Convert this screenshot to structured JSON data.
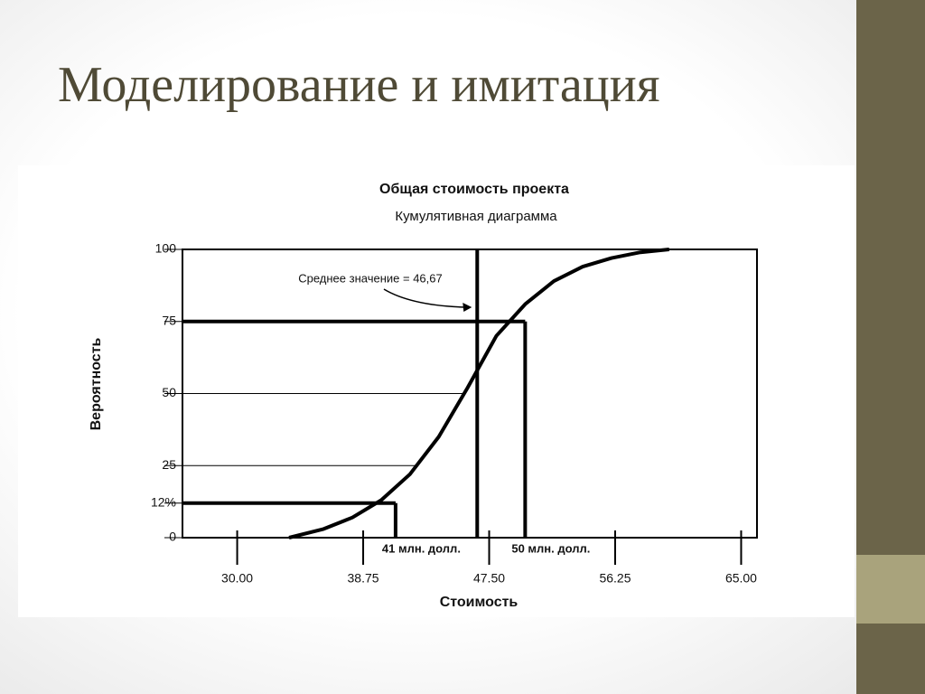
{
  "slide_title": "Моделирование и имитация",
  "chart_data": {
    "type": "line",
    "title": "Общая стоимость проекта",
    "subtitle": "Кумулятивная диаграмма",
    "x_label": "Стоимость",
    "y_label": "Вероятность",
    "x": [
      33.6,
      36,
      38,
      40,
      42,
      44,
      46,
      48,
      50,
      52,
      54,
      56,
      58,
      60
    ],
    "series": [
      {
        "color": "#000000",
        "values": [
          0,
          3,
          7,
          13,
          22,
          35,
          52,
          70,
          81,
          89,
          94,
          97,
          99,
          100
        ]
      }
    ],
    "xlim": [
      26.2,
      66.1
    ],
    "ylim": [
      0,
      100
    ],
    "xticks": [
      {
        "value": 30,
        "label": "30.00"
      },
      {
        "value": 38.75,
        "label": "38.75"
      },
      {
        "value": 47.5,
        "label": "47.50"
      },
      {
        "value": 56.25,
        "label": "56.25"
      },
      {
        "value": 65,
        "label": "65.00"
      }
    ],
    "yticks": [
      0,
      {
        "value": 12,
        "label": "12%"
      },
      25,
      50,
      75,
      100
    ],
    "markers": [
      {
        "label": "41 млн. долл.",
        "x": 41,
        "y": 12
      },
      {
        "label": "50 млн. долл.",
        "x": 50,
        "y": 75
      }
    ],
    "mean": {
      "text": "Среднее значение = 46,67",
      "x": 46.67
    }
  }
}
